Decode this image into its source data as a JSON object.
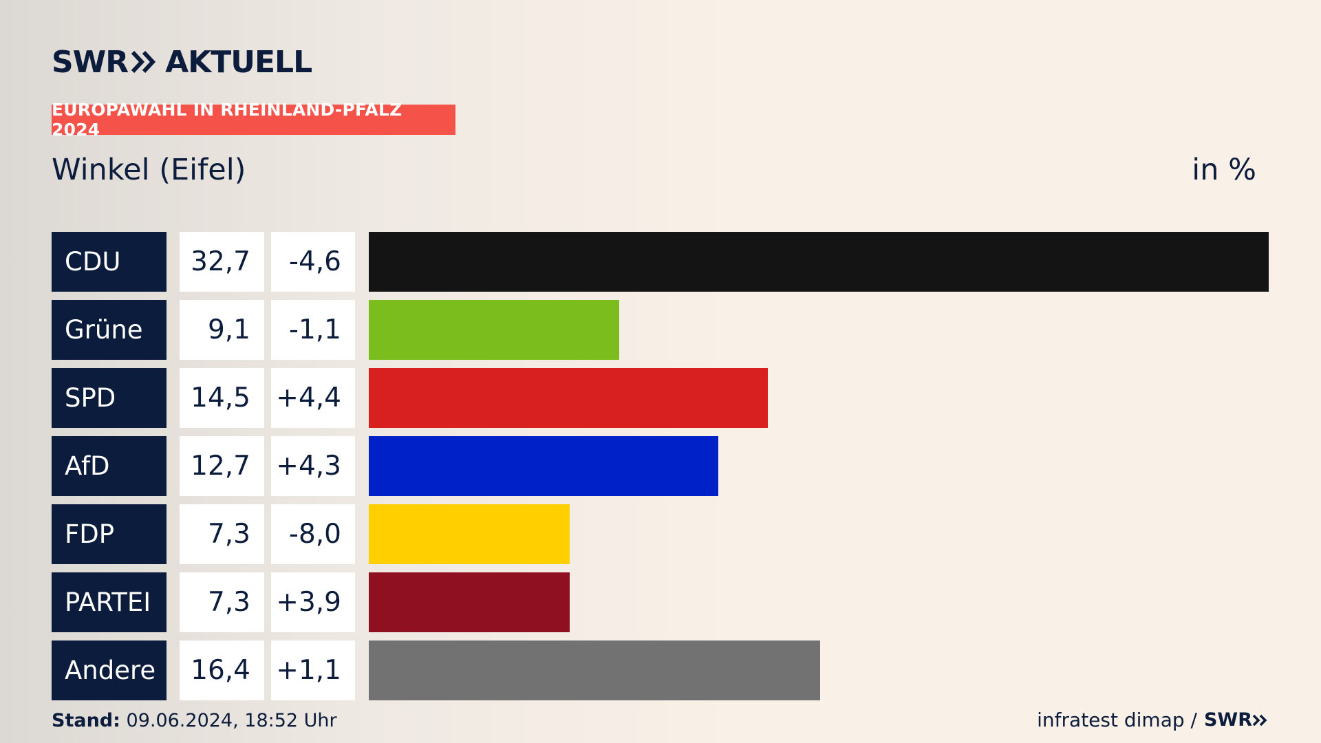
{
  "brand": {
    "logo_left": "SWR",
    "logo_right": "AKTUELL",
    "chevron_icon": "double-chevron-right-icon"
  },
  "badge": {
    "label": "EUROPAWAHL IN RHEINLAND-PFALZ 2024",
    "color": "#f5524a"
  },
  "subtitle": "Winkel (Eifel)",
  "unit": "in %",
  "chart_data": {
    "type": "bar",
    "orientation": "horizontal",
    "categories": [
      "CDU",
      "Grüne",
      "SPD",
      "AfD",
      "FDP",
      "PARTEI",
      "Andere"
    ],
    "values": [
      "32,7",
      "9,1",
      "14,5",
      "12,7",
      "7,3",
      "7,3",
      "16,4"
    ],
    "numeric_values": [
      32.7,
      9.1,
      14.5,
      12.7,
      7.3,
      7.3,
      16.4
    ],
    "changes": [
      "-4,6",
      "-1,1",
      "+4,4",
      "+4,3",
      "-8,0",
      "+3,9",
      "+1,1"
    ],
    "colors": [
      "#141414",
      "#7bbd1d",
      "#d82021",
      "#0020c8",
      "#ffcf00",
      "#8f1020",
      "#727272"
    ],
    "xlim": [
      0,
      32.7
    ]
  },
  "footer": {
    "stand_label": "Stand:",
    "stand_value": "09.06.2024, 18:52 Uhr",
    "source_text": "infratest dimap /",
    "source_logo": "SWR"
  }
}
